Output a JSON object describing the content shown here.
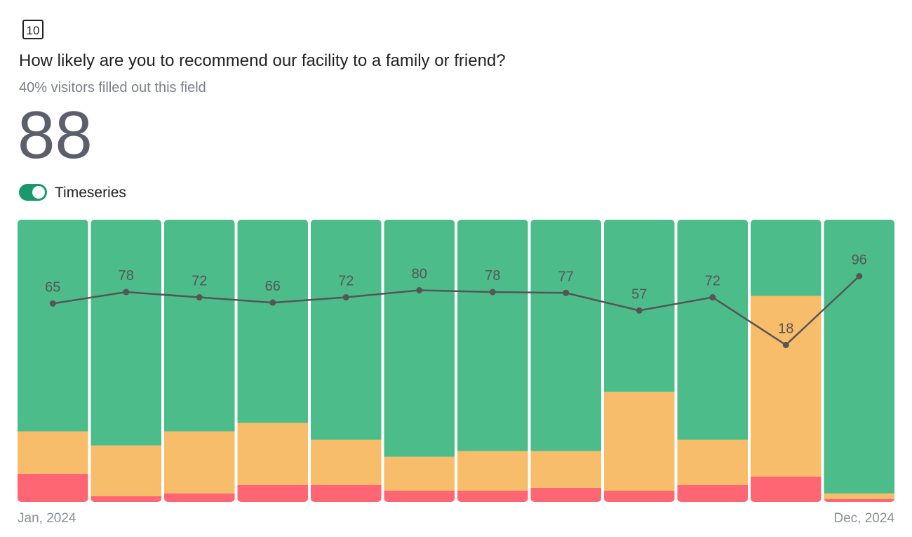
{
  "icon": "10",
  "chart_data": {
    "type": "stacked-bar-line",
    "title": "How likely are you to recommend our facility to a family or friend?",
    "subtitle": "40% visitors filled out this field",
    "score": 88,
    "toggle_label": "Timeseries",
    "categories": [
      "Jan, 2024",
      null,
      null,
      null,
      null,
      null,
      null,
      null,
      null,
      null,
      null,
      "Dec, 2024"
    ],
    "ylim": [
      0,
      100
    ],
    "y2lim": [
      -160,
      160
    ],
    "series": [
      {
        "color": "#ff6673",
        "values": [
          10,
          2,
          3,
          6,
          6,
          4,
          4,
          5,
          4,
          6,
          9,
          1
        ]
      },
      {
        "color": "#f7bd6a",
        "values": [
          15,
          18,
          22,
          22,
          16,
          12,
          14,
          13,
          35,
          16,
          64,
          2
        ]
      },
      {
        "color": "#4cbd8a",
        "values": [
          75,
          80,
          75,
          72,
          78,
          84,
          82,
          82,
          61,
          78,
          27,
          97
        ]
      },
      {
        "color": "#555555",
        "axis": "y2",
        "values": [
          65,
          78,
          72,
          66,
          72,
          80,
          78,
          77,
          57,
          72,
          18,
          96
        ]
      }
    ]
  }
}
